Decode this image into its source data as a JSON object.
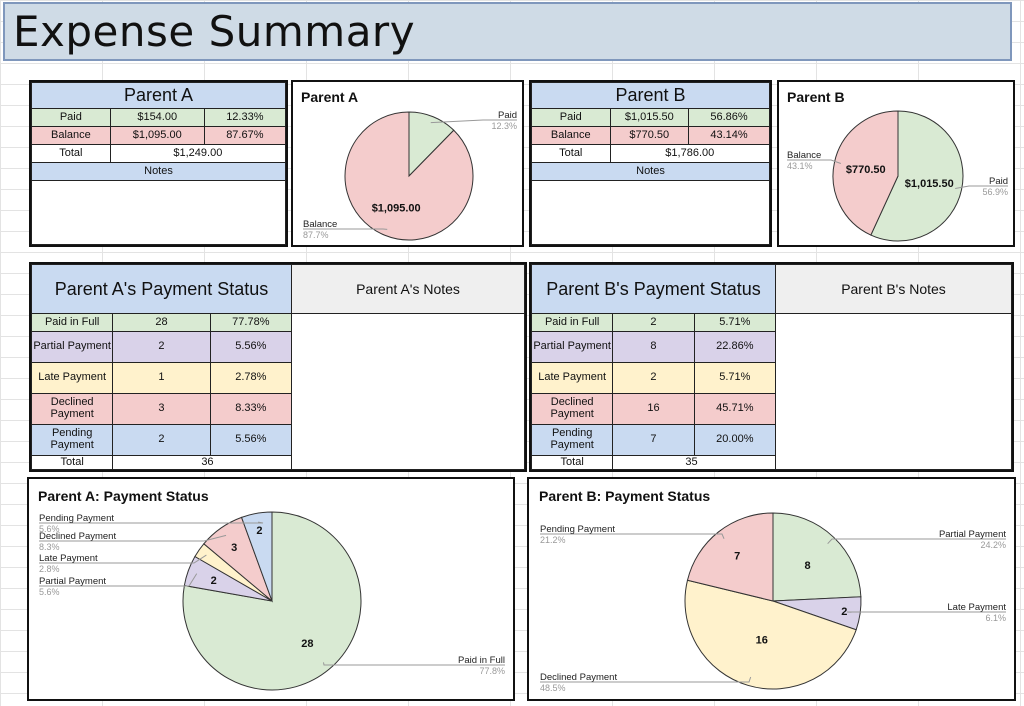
{
  "title": "Expense Summary",
  "parent_a_summary": {
    "header": "Parent A",
    "rows": [
      {
        "label": "Paid",
        "amount": "$154.00",
        "pct": "12.33%"
      },
      {
        "label": "Balance",
        "amount": "$1,095.00",
        "pct": "87.67%"
      }
    ],
    "total_label": "Total",
    "total_value": "$1,249.00",
    "notes_label": "Notes"
  },
  "parent_b_summary": {
    "header": "Parent B",
    "rows": [
      {
        "label": "Paid",
        "amount": "$1,015.50",
        "pct": "56.86%"
      },
      {
        "label": "Balance",
        "amount": "$770.50",
        "pct": "43.14%"
      }
    ],
    "total_label": "Total",
    "total_value": "$1,786.00",
    "notes_label": "Notes"
  },
  "parent_a_status": {
    "header": "Parent A's Payment Status",
    "notes_header": "Parent A's Notes",
    "rows": [
      {
        "label": "Paid in Full",
        "count": "28",
        "pct": "77.78%"
      },
      {
        "label": "Partial Payment",
        "count": "2",
        "pct": "5.56%"
      },
      {
        "label": "Late Payment",
        "count": "1",
        "pct": "2.78%"
      },
      {
        "label": "Declined Payment",
        "count": "3",
        "pct": "8.33%"
      },
      {
        "label": "Pending Payment",
        "count": "2",
        "pct": "5.56%"
      }
    ],
    "total_label": "Total",
    "total_value": "36"
  },
  "parent_b_status": {
    "header": "Parent B's Payment Status",
    "notes_header": "Parent B's Notes",
    "rows": [
      {
        "label": "Paid in Full",
        "count": "2",
        "pct": "5.71%"
      },
      {
        "label": "Partial Payment",
        "count": "8",
        "pct": "22.86%"
      },
      {
        "label": "Late Payment",
        "count": "2",
        "pct": "5.71%"
      },
      {
        "label": "Declined Payment",
        "count": "16",
        "pct": "45.71%"
      },
      {
        "label": "Pending Payment",
        "count": "7",
        "pct": "20.00%"
      }
    ],
    "total_label": "Total",
    "total_value": "35"
  },
  "colors": {
    "green": "#d9ead3",
    "pink": "#f4cccc",
    "purple": "#d9d2e9",
    "yellow": "#fff2cc",
    "blue": "#c9daf1",
    "banner": "#cfdbe6"
  },
  "chart_data": [
    {
      "type": "pie",
      "title": "Parent A",
      "slices": [
        {
          "label": "Paid",
          "value": 154.0,
          "pct_label": "12.3%",
          "value_label": "",
          "color": "#d9ead3"
        },
        {
          "label": "Balance",
          "value": 1095.0,
          "pct_label": "87.7%",
          "value_label": "$1,095.00",
          "color": "#f4cccc"
        }
      ]
    },
    {
      "type": "pie",
      "title": "Parent B",
      "slices": [
        {
          "label": "Paid",
          "value": 1015.5,
          "pct_label": "56.9%",
          "value_label": "$1,015.50",
          "color": "#d9ead3"
        },
        {
          "label": "Balance",
          "value": 770.5,
          "pct_label": "43.1%",
          "value_label": "$770.50",
          "color": "#f4cccc"
        }
      ]
    },
    {
      "type": "pie",
      "title": "Parent A: Payment Status",
      "slices": [
        {
          "label": "Paid in Full",
          "value": 28,
          "pct_label": "77.8%",
          "value_label": "28",
          "color": "#d9ead3"
        },
        {
          "label": "Partial Payment",
          "value": 2,
          "pct_label": "5.6%",
          "value_label": "2",
          "color": "#d9d2e9"
        },
        {
          "label": "Late Payment",
          "value": 1,
          "pct_label": "2.8%",
          "value_label": "",
          "color": "#fff2cc"
        },
        {
          "label": "Declined Payment",
          "value": 3,
          "pct_label": "8.3%",
          "value_label": "3",
          "color": "#f4cccc"
        },
        {
          "label": "Pending Payment",
          "value": 2,
          "pct_label": "5.6%",
          "value_label": "2",
          "color": "#c9daf1"
        }
      ]
    },
    {
      "type": "pie",
      "title": "Parent B: Payment Status",
      "slices": [
        {
          "label": "Partial Payment",
          "value": 8,
          "pct_label": "24.2%",
          "value_label": "8",
          "color": "#d9ead3"
        },
        {
          "label": "Late Payment",
          "value": 2,
          "pct_label": "6.1%",
          "value_label": "2",
          "color": "#d9d2e9"
        },
        {
          "label": "Declined Payment",
          "value": 16,
          "pct_label": "48.5%",
          "value_label": "16",
          "color": "#fff2cc"
        },
        {
          "label": "Pending Payment",
          "value": 7,
          "pct_label": "21.2%",
          "value_label": "7",
          "color": "#f4cccc"
        }
      ]
    }
  ]
}
